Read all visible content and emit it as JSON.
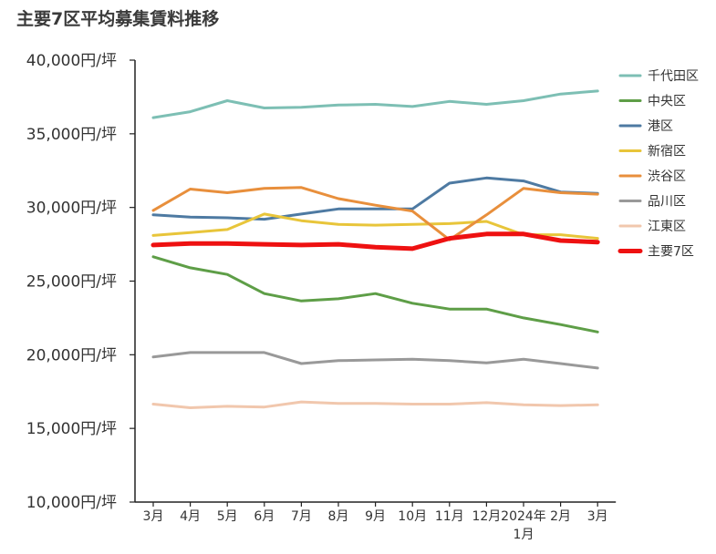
{
  "chart_data": {
    "type": "line",
    "title": "主要7区平均募集賃料推移",
    "xlabel": "",
    "ylabel": "",
    "ylim": [
      10000,
      40000
    ],
    "y_ticks": [
      "10,000円/坪",
      "15,000円/坪",
      "20,000円/坪",
      "25,000円/坪",
      "30,000円/坪",
      "35,000円/坪",
      "40,000円/坪"
    ],
    "y_tick_values": [
      10000,
      15000,
      20000,
      25000,
      30000,
      35000,
      40000
    ],
    "categories": [
      "3月",
      "4月",
      "5月",
      "6月",
      "7月",
      "8月",
      "9月",
      "10月",
      "11月",
      "12月",
      "2024年1月",
      "2月",
      "3月"
    ],
    "category_lines": [
      [
        "3月"
      ],
      [
        "4月"
      ],
      [
        "5月"
      ],
      [
        "6月"
      ],
      [
        "7月"
      ],
      [
        "8月"
      ],
      [
        "9月"
      ],
      [
        "10月"
      ],
      [
        "11月"
      ],
      [
        "12月"
      ],
      [
        "2024年",
        "1月"
      ],
      [
        "2月"
      ],
      [
        "3月"
      ]
    ],
    "grid": false,
    "legend_position": "right",
    "series": [
      {
        "name": "千代田区",
        "color": "#7dbfb4",
        "values": [
          36100,
          36500,
          37250,
          36750,
          36800,
          36950,
          37000,
          36850,
          37200,
          37000,
          37250,
          37700,
          37900
        ]
      },
      {
        "name": "中央区",
        "color": "#5e9e47",
        "values": [
          26650,
          25900,
          25450,
          24150,
          23650,
          23800,
          24150,
          23500,
          23100,
          23100,
          22500,
          22050,
          21550
        ]
      },
      {
        "name": "港区",
        "color": "#4e7aa2",
        "values": [
          29500,
          29350,
          29300,
          29200,
          29550,
          29900,
          29900,
          29900,
          31650,
          32000,
          31800,
          31050,
          30950
        ]
      },
      {
        "name": "新宿区",
        "color": "#e8c53a",
        "values": [
          28100,
          28300,
          28500,
          29550,
          29100,
          28850,
          28800,
          28850,
          28900,
          29050,
          28150,
          28150,
          27900
        ]
      },
      {
        "name": "渋谷区",
        "color": "#e88f3c",
        "values": [
          29800,
          31250,
          31000,
          31300,
          31350,
          30600,
          30150,
          29750,
          27800,
          29500,
          31300,
          31000,
          30900
        ]
      },
      {
        "name": "品川区",
        "color": "#999999",
        "values": [
          19850,
          20150,
          20150,
          20150,
          19400,
          19600,
          19650,
          19700,
          19600,
          19450,
          19700,
          19400,
          19100
        ]
      },
      {
        "name": "江東区",
        "color": "#f1c7ad",
        "values": [
          16650,
          16400,
          16500,
          16450,
          16800,
          16700,
          16700,
          16650,
          16650,
          16750,
          16600,
          16550,
          16600
        ]
      },
      {
        "name": "主要7区",
        "color": "#ee1111",
        "bold": true,
        "values": [
          27450,
          27550,
          27550,
          27500,
          27450,
          27500,
          27300,
          27200,
          27900,
          28200,
          28200,
          27750,
          27650
        ]
      }
    ]
  }
}
